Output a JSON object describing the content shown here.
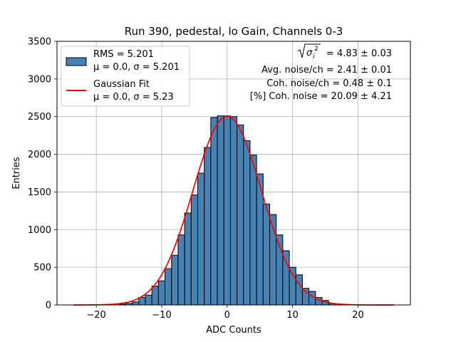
{
  "chart_data": {
    "type": "bar",
    "title": "Run 390, pedestal, lo Gain, Channels 0-3",
    "xlabel": "ADC Counts",
    "ylabel": "Entries",
    "xlim": [
      -26,
      28
    ],
    "ylim": [
      0,
      3500
    ],
    "xticks": [
      -20,
      -10,
      0,
      10,
      20
    ],
    "yticks": [
      0,
      500,
      1000,
      1500,
      2000,
      2500,
      3000,
      3500
    ],
    "grid": true,
    "histogram": {
      "name": "RMS = 5.201",
      "stats_label": "μ = 0.0, σ = 5.201",
      "color": "#4682b4",
      "edge_color": "#000000",
      "bin_left_edges": [
        -16.5,
        -15.5,
        -14.5,
        -13.5,
        -12.5,
        -11.5,
        -10.5,
        -9.5,
        -8.5,
        -7.5,
        -6.5,
        -5.5,
        -4.5,
        -3.5,
        -2.5,
        -1.5,
        -0.5,
        0.5,
        1.5,
        2.5,
        3.5,
        4.5,
        5.5,
        6.5,
        7.5,
        8.5,
        9.5,
        10.5,
        11.5,
        12.5,
        13.5,
        14.5,
        15.5
      ],
      "bin_width": 1,
      "counts": [
        10,
        20,
        40,
        100,
        130,
        250,
        320,
        480,
        660,
        930,
        1220,
        1460,
        1750,
        2090,
        2490,
        2510,
        2510,
        2500,
        2390,
        2180,
        1990,
        1740,
        1340,
        1200,
        930,
        720,
        500,
        400,
        220,
        180,
        100,
        60,
        20
      ]
    },
    "fit": {
      "name": "Gaussian Fit",
      "stats_label": "μ = 0.0, σ = 5.23",
      "color": "#ff0000",
      "mu": 0.0,
      "sigma": 5.23,
      "amplitude": 2505,
      "x_range": [
        -23.5,
        25.5
      ]
    },
    "annotations": [
      {
        "prefix": "",
        "value": "= 4.83 ± 0.03",
        "formula": "sqrt(sigma_i^2)"
      },
      {
        "text": "Avg. noise/ch = 2.41 ± 0.01"
      },
      {
        "text": "Coh. noise/ch = 0.48 ± 0.1"
      },
      {
        "text": "[%] Coh. noise = 20.09 ± 4.21"
      }
    ],
    "legend_position": "top-left"
  }
}
